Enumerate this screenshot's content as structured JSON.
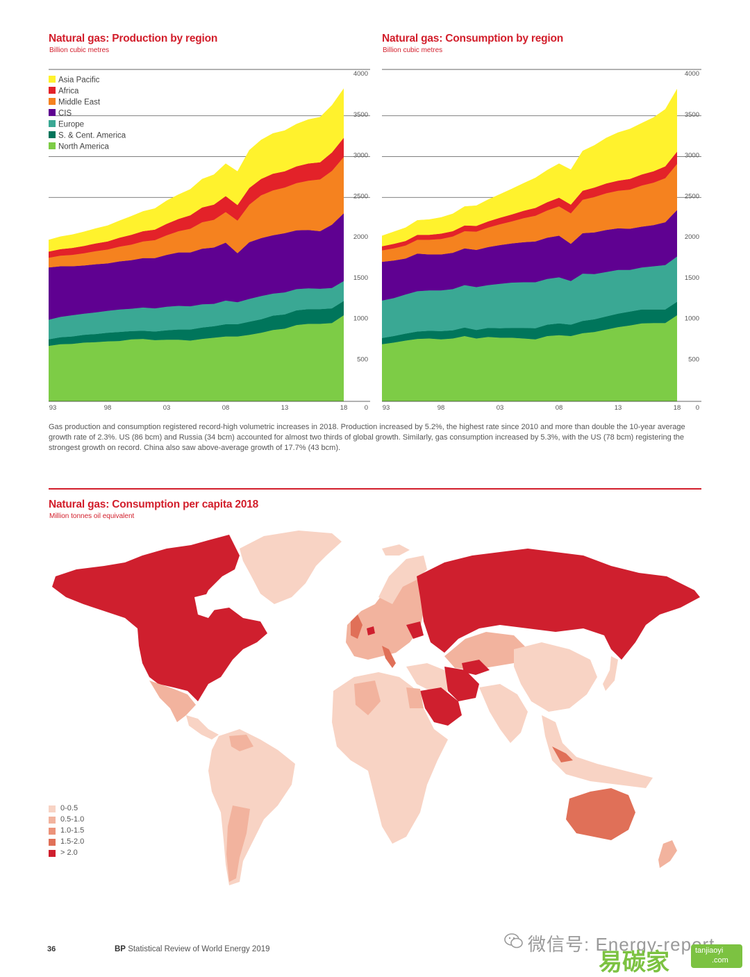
{
  "charts": [
    {
      "title": "Natural gas: Production by region",
      "subtitle": "Billion cubic metres"
    },
    {
      "title": "Natural gas: Consumption by region",
      "subtitle": "Billion cubic metres"
    }
  ],
  "chart_data": [
    {
      "type": "area",
      "stacked": true,
      "title": "Natural gas: Production by region",
      "ylabel": "Billion cubic metres",
      "x": [
        1993,
        1994,
        1995,
        1996,
        1997,
        1998,
        1999,
        2000,
        2001,
        2002,
        2003,
        2004,
        2005,
        2006,
        2007,
        2008,
        2009,
        2010,
        2011,
        2012,
        2013,
        2014,
        2015,
        2016,
        2017,
        2018
      ],
      "xticklabels": [
        "93",
        "98",
        "03",
        "08",
        "13",
        "18"
      ],
      "xticks": [
        1993,
        1998,
        2003,
        2008,
        2013,
        2018
      ],
      "ylim": [
        0,
        4000
      ],
      "yticks": [
        0,
        500,
        1000,
        1500,
        2000,
        2500,
        3000,
        3500,
        4000
      ],
      "grid_y": [
        2500,
        3000,
        3500,
        4000
      ],
      "legend_position": "top-left",
      "series": [
        {
          "name": "North America",
          "color": "#7dcc46",
          "values": [
            680,
            700,
            705,
            720,
            725,
            735,
            740,
            760,
            765,
            750,
            755,
            755,
            745,
            765,
            780,
            795,
            795,
            815,
            840,
            875,
            890,
            935,
            950,
            950,
            960,
            1055
          ]
        },
        {
          "name": "S. & Cent. America",
          "color": "#00755b",
          "values": [
            80,
            85,
            90,
            95,
            100,
            105,
            110,
            100,
            100,
            105,
            115,
            125,
            135,
            140,
            140,
            150,
            150,
            160,
            165,
            175,
            175,
            180,
            180,
            180,
            180,
            175
          ]
        },
        {
          "name": "Europe",
          "color": "#3aa894",
          "values": [
            240,
            250,
            260,
            260,
            265,
            270,
            275,
            275,
            285,
            285,
            290,
            290,
            285,
            285,
            275,
            290,
            270,
            280,
            285,
            270,
            270,
            260,
            255,
            250,
            250,
            245
          ]
        },
        {
          "name": "CIS",
          "color": "#5f0191",
          "values": [
            640,
            620,
            600,
            590,
            590,
            580,
            590,
            595,
            605,
            615,
            635,
            655,
            660,
            680,
            690,
            710,
            600,
            695,
            710,
            715,
            725,
            720,
            715,
            705,
            775,
            830
          ]
        },
        {
          "name": "Middle East",
          "color": "#f5821f",
          "values": [
            120,
            130,
            140,
            150,
            160,
            170,
            180,
            190,
            205,
            220,
            240,
            260,
            290,
            325,
            340,
            375,
            400,
            460,
            525,
            550,
            560,
            580,
            605,
            635,
            660,
            690
          ]
        },
        {
          "name": "Africa",
          "color": "#e32229",
          "values": [
            75,
            80,
            85,
            90,
            95,
            100,
            110,
            120,
            125,
            130,
            140,
            150,
            165,
            180,
            185,
            195,
            190,
            205,
            200,
            205,
            200,
            205,
            210,
            210,
            225,
            235
          ]
        },
        {
          "name": "Asia Pacific",
          "color": "#fff22d",
          "values": [
            145,
            155,
            165,
            175,
            185,
            195,
            210,
            230,
            245,
            260,
            285,
            300,
            320,
            350,
            370,
            400,
            415,
            465,
            480,
            495,
            500,
            520,
            540,
            555,
            580,
            605
          ]
        }
      ]
    },
    {
      "type": "area",
      "stacked": true,
      "title": "Natural gas: Consumption by region",
      "ylabel": "Billion cubic metres",
      "x": [
        1993,
        1994,
        1995,
        1996,
        1997,
        1998,
        1999,
        2000,
        2001,
        2002,
        2003,
        2004,
        2005,
        2006,
        2007,
        2008,
        2009,
        2010,
        2011,
        2012,
        2013,
        2014,
        2015,
        2016,
        2017,
        2018
      ],
      "xticklabels": [
        "93",
        "98",
        "03",
        "08",
        "13",
        "18"
      ],
      "xticks": [
        1993,
        1998,
        2003,
        2008,
        2013,
        2018
      ],
      "ylim": [
        0,
        4000
      ],
      "yticks": [
        0,
        500,
        1000,
        1500,
        2000,
        2500,
        3000,
        3500,
        4000
      ],
      "grid_y": [
        2500,
        3000,
        3500,
        4000
      ],
      "series": [
        {
          "name": "North America",
          "color": "#7dcc46",
          "values": [
            700,
            720,
            745,
            765,
            770,
            760,
            770,
            800,
            770,
            790,
            780,
            780,
            770,
            760,
            800,
            810,
            800,
            835,
            850,
            880,
            910,
            930,
            955,
            960,
            960,
            1055
          ]
        },
        {
          "name": "S. & Cent. America",
          "color": "#00755b",
          "values": [
            75,
            80,
            85,
            90,
            95,
            100,
            100,
            105,
            105,
            110,
            115,
            120,
            130,
            135,
            140,
            145,
            140,
            150,
            155,
            160,
            165,
            170,
            170,
            165,
            165,
            165
          ]
        },
        {
          "name": "Europe",
          "color": "#3aa894",
          "values": [
            460,
            465,
            480,
            495,
            495,
            500,
            505,
            520,
            525,
            525,
            545,
            555,
            560,
            565,
            560,
            565,
            535,
            580,
            555,
            545,
            535,
            510,
            515,
            530,
            545,
            555
          ]
        },
        {
          "name": "CIS",
          "color": "#5f0191",
          "values": [
            475,
            460,
            440,
            460,
            440,
            440,
            445,
            450,
            455,
            465,
            475,
            480,
            490,
            500,
            505,
            510,
            455,
            495,
            510,
            515,
            510,
            505,
            500,
            505,
            525,
            570
          ]
        },
        {
          "name": "Middle East",
          "color": "#f5821f",
          "values": [
            140,
            150,
            160,
            170,
            180,
            190,
            200,
            210,
            225,
            240,
            255,
            270,
            295,
            315,
            335,
            360,
            375,
            410,
            435,
            450,
            460,
            480,
            505,
            520,
            540,
            565
          ]
        },
        {
          "name": "Africa",
          "color": "#e32229",
          "values": [
            50,
            55,
            55,
            60,
            60,
            65,
            65,
            70,
            70,
            75,
            80,
            85,
            90,
            95,
            100,
            105,
            105,
            110,
            115,
            120,
            125,
            130,
            135,
            140,
            145,
            150
          ]
        },
        {
          "name": "Asia Pacific",
          "color": "#fff22d",
          "values": [
            130,
            150,
            165,
            180,
            190,
            200,
            215,
            235,
            250,
            270,
            290,
            315,
            340,
            370,
            395,
            420,
            430,
            490,
            520,
            560,
            590,
            615,
            630,
            660,
            700,
            770
          ]
        }
      ]
    }
  ],
  "caption": "Gas production and consumption registered record-high volumetric increases in 2018. Production increased by 5.2%, the highest rate since 2010 and more than double the 10-year average growth rate of 2.3%. US (86 bcm) and Russia (34 bcm) accounted for almost two thirds of global growth. Similarly, gas consumption increased by 5.3%, with the US (78 bcm) registering the strongest growth on record. China also saw above-average growth of 17.7% (43 bcm).",
  "map": {
    "title": "Natural gas: Consumption per capita 2018",
    "subtitle": "Million tonnes oil equivalent",
    "legend": [
      {
        "label": "0-0.5",
        "color": "#f8d3c4"
      },
      {
        "label": "0.5-1.0",
        "color": "#f2b39e"
      },
      {
        "label": "1.0-1.5",
        "color": "#ec937a"
      },
      {
        "label": "1.5-2.0",
        "color": "#e07058"
      },
      {
        "label": "> 2.0",
        "color": "#cf1f2e"
      }
    ]
  },
  "footer": {
    "page_number": "36",
    "brand": "BP",
    "publication": "Statistical Review of World Energy 2019"
  },
  "watermark": {
    "wechat": "微信号: Energy-report",
    "site_cn": "易碳家",
    "site_en": "tanjiaoyi",
    "site_tld": ".com"
  }
}
